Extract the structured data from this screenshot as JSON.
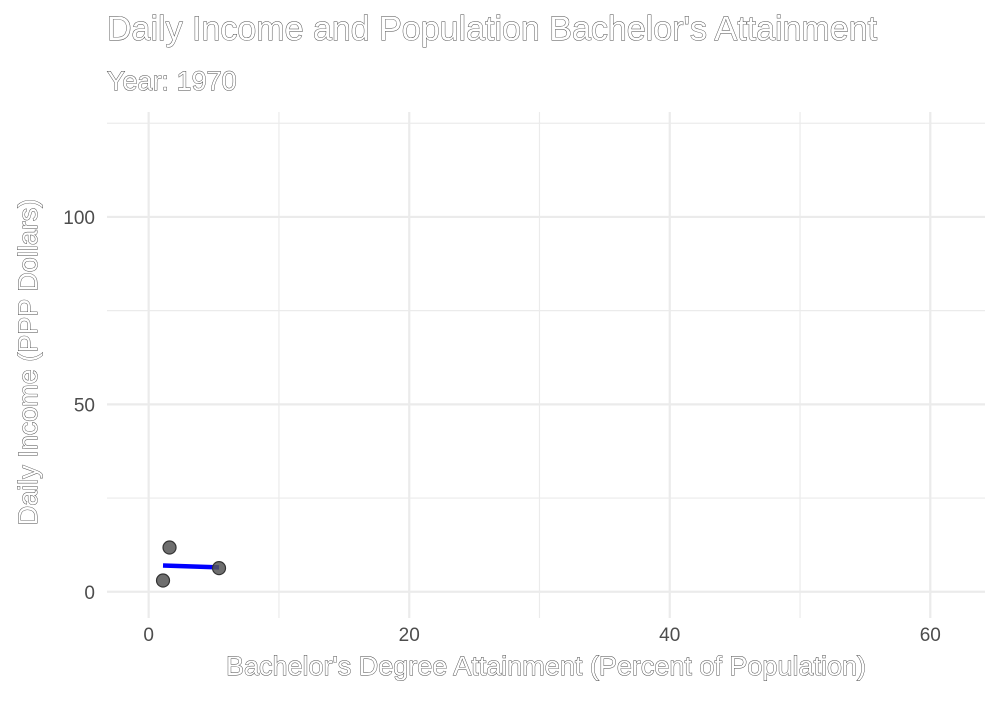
{
  "chart_data": {
    "type": "scatter",
    "title": "Daily Income and Population Bachelor's Attainment",
    "subtitle": "Year: 1970",
    "xlabel": "Bachelor's Degree Attainment (Percent of Population)",
    "ylabel": "Daily Income (PPP Dollars)",
    "xlim": [
      -3.2,
      64.2
    ],
    "ylim": [
      -7,
      128
    ],
    "x_ticks": [
      0,
      20,
      40,
      60
    ],
    "y_ticks": [
      0,
      50,
      100
    ],
    "x_minor": [
      10,
      30,
      50
    ],
    "y_minor": [
      25,
      75,
      125
    ],
    "grid": true,
    "points": [
      {
        "x": 1.6,
        "y": 11.8
      },
      {
        "x": 1.1,
        "y": 3.0
      },
      {
        "x": 5.4,
        "y": 6.3
      }
    ],
    "trend_line": {
      "x": [
        1.1,
        5.4
      ],
      "y": [
        7.0,
        6.5
      ]
    },
    "colors": {
      "points": "#555555",
      "trend_line": "#0000ff",
      "grid": "#ebebeb"
    }
  }
}
